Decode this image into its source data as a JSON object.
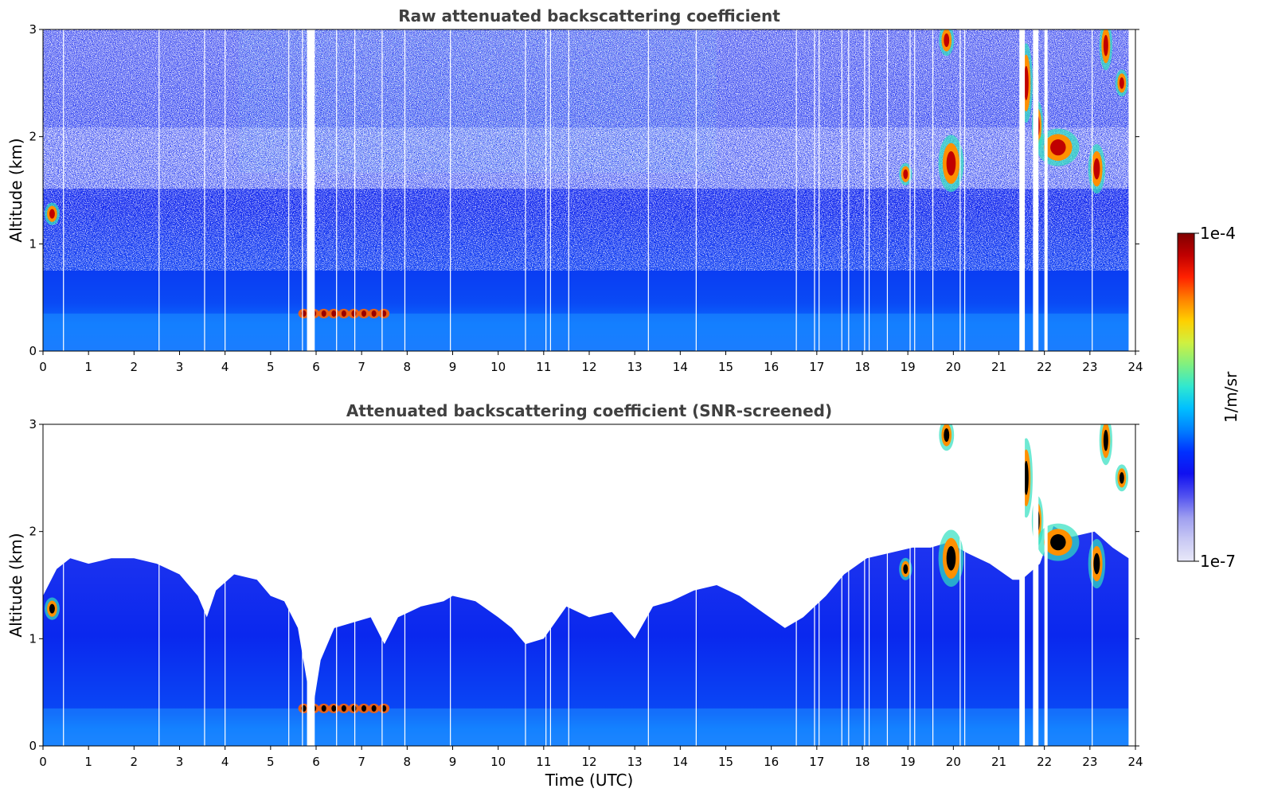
{
  "chart_data": [
    {
      "type": "heatmap",
      "title": "Raw attenuated backscattering coefficient",
      "xlabel": "",
      "ylabel": "Altitude (km)",
      "xlim": [
        0,
        24
      ],
      "ylim": [
        0,
        3
      ],
      "x_ticks": [
        "0",
        "1",
        "2",
        "3",
        "4",
        "5",
        "6",
        "7",
        "8",
        "9",
        "10",
        "11",
        "12",
        "13",
        "14",
        "15",
        "16",
        "17",
        "18",
        "19",
        "20",
        "21",
        "22",
        "23",
        "24"
      ],
      "y_ticks": [
        "0",
        "1",
        "2",
        "3"
      ],
      "screening": "raw",
      "grid": false
    },
    {
      "type": "heatmap",
      "title": "Attenuated backscattering coefficient (SNR-screened)",
      "xlabel": "Time (UTC)",
      "ylabel": "Altitude (km)",
      "xlim": [
        0,
        24
      ],
      "ylim": [
        0,
        3
      ],
      "x_ticks": [
        "0",
        "1",
        "2",
        "3",
        "4",
        "5",
        "6",
        "7",
        "8",
        "9",
        "10",
        "11",
        "12",
        "13",
        "14",
        "15",
        "16",
        "17",
        "18",
        "19",
        "20",
        "21",
        "22",
        "23",
        "24"
      ],
      "y_ticks": [
        "0",
        "1",
        "2",
        "3"
      ],
      "screening": "SNR",
      "grid": false,
      "signal_top_km": [
        [
          0.0,
          1.4
        ],
        [
          0.3,
          1.65
        ],
        [
          0.6,
          1.75
        ],
        [
          1.0,
          1.7
        ],
        [
          1.5,
          1.75
        ],
        [
          2.0,
          1.75
        ],
        [
          2.5,
          1.7
        ],
        [
          3.0,
          1.6
        ],
        [
          3.4,
          1.4
        ],
        [
          3.6,
          1.2
        ],
        [
          3.8,
          1.45
        ],
        [
          4.2,
          1.6
        ],
        [
          4.7,
          1.55
        ],
        [
          5.0,
          1.4
        ],
        [
          5.3,
          1.35
        ],
        [
          5.6,
          1.1
        ],
        [
          5.8,
          0.6
        ],
        [
          5.95,
          0.4
        ],
        [
          6.1,
          0.8
        ],
        [
          6.4,
          1.1
        ],
        [
          6.8,
          1.15
        ],
        [
          7.2,
          1.2
        ],
        [
          7.5,
          0.95
        ],
        [
          7.8,
          1.2
        ],
        [
          8.3,
          1.3
        ],
        [
          8.8,
          1.35
        ],
        [
          9.0,
          1.4
        ],
        [
          9.5,
          1.35
        ],
        [
          10.0,
          1.2
        ],
        [
          10.3,
          1.1
        ],
        [
          10.6,
          0.95
        ],
        [
          11.0,
          1.0
        ],
        [
          11.5,
          1.3
        ],
        [
          12.0,
          1.2
        ],
        [
          12.5,
          1.25
        ],
        [
          13.0,
          1.0
        ],
        [
          13.4,
          1.3
        ],
        [
          13.8,
          1.35
        ],
        [
          14.3,
          1.45
        ],
        [
          14.8,
          1.5
        ],
        [
          15.3,
          1.4
        ],
        [
          15.8,
          1.25
        ],
        [
          16.3,
          1.1
        ],
        [
          16.7,
          1.2
        ],
        [
          17.2,
          1.4
        ],
        [
          17.6,
          1.6
        ],
        [
          18.1,
          1.75
        ],
        [
          18.6,
          1.8
        ],
        [
          19.1,
          1.85
        ],
        [
          19.5,
          1.85
        ],
        [
          19.9,
          1.9
        ],
        [
          20.3,
          1.8
        ],
        [
          20.8,
          1.7
        ],
        [
          21.3,
          1.55
        ],
        [
          21.5,
          1.55
        ],
        [
          21.9,
          1.7
        ],
        [
          22.2,
          2.05
        ],
        [
          22.6,
          1.95
        ],
        [
          23.1,
          2.0
        ],
        [
          23.5,
          1.85
        ],
        [
          23.85,
          1.75
        ]
      ]
    }
  ],
  "colorbar": {
    "label": "1/m/sr",
    "max_label": "1e-4",
    "min_label": "1e-7",
    "colors": [
      "#e8e8f8",
      "#c8c8f4",
      "#9e9ef0",
      "#5050f0",
      "#1010f0",
      "#0030ff",
      "#0080ff",
      "#00c0ff",
      "#30e8d0",
      "#80f080",
      "#d0f040",
      "#ffd000",
      "#ff8000",
      "#ff2000",
      "#c00000",
      "#800000"
    ]
  },
  "features": {
    "data_gaps_h": [
      5.8,
      5.85,
      5.9,
      21.45,
      21.5,
      21.75,
      21.8,
      22.0
    ],
    "thin_gaps_h": [
      0.45,
      2.55,
      3.55,
      4.0,
      5.4,
      5.7,
      6.45,
      6.85,
      7.45,
      7.95,
      8.95,
      10.6,
      11.05,
      11.15,
      11.55,
      13.3,
      14.35,
      16.55,
      16.95,
      17.05,
      17.55,
      17.7,
      18.05,
      18.15,
      18.55,
      19.05,
      19.15,
      19.55,
      20.15,
      20.25,
      23.05
    ],
    "aerosol_layer_km": [
      0.28,
      0.42
    ],
    "aerosol_layer_h": [
      5.65,
      7.5
    ],
    "clouds": [
      {
        "t": 0.2,
        "z": 1.28,
        "w": 0.15,
        "h": 0.12
      },
      {
        "t": 18.95,
        "z": 1.65,
        "w": 0.12,
        "h": 0.12
      },
      {
        "t": 19.95,
        "z": 1.75,
        "w": 0.3,
        "h": 0.35
      },
      {
        "t": 19.85,
        "z": 2.9,
        "w": 0.15,
        "h": 0.18
      },
      {
        "t": 21.6,
        "z": 2.5,
        "w": 0.12,
        "h": 0.5
      },
      {
        "t": 21.85,
        "z": 2.1,
        "w": 0.1,
        "h": 0.3
      },
      {
        "t": 22.3,
        "z": 1.9,
        "w": 0.55,
        "h": 0.22
      },
      {
        "t": 23.15,
        "z": 1.7,
        "w": 0.18,
        "h": 0.3
      },
      {
        "t": 23.35,
        "z": 2.85,
        "w": 0.12,
        "h": 0.3
      },
      {
        "t": 23.7,
        "z": 2.5,
        "w": 0.12,
        "h": 0.15
      }
    ]
  }
}
